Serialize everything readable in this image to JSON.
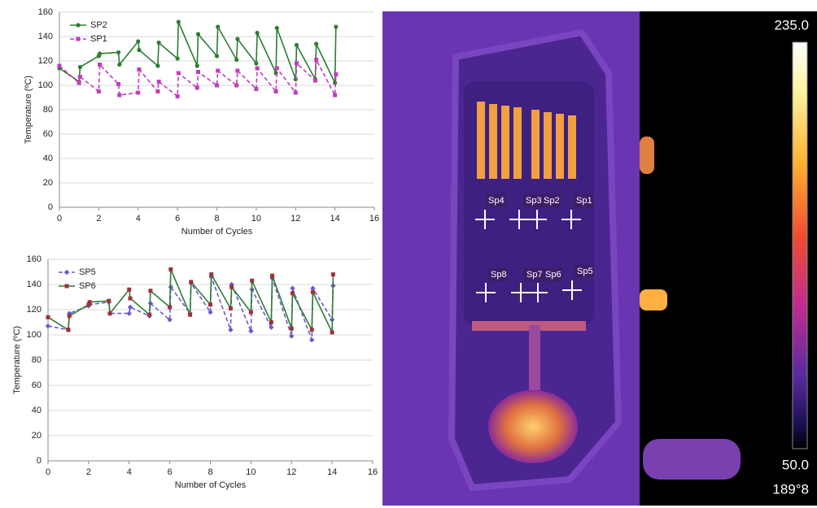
{
  "chart_data": [
    {
      "type": "line",
      "xlabel": "Number of Cycles",
      "ylabel": "Temperature (ºC)",
      "x": [
        0,
        1,
        1.05,
        2,
        2.05,
        3,
        3.05,
        4,
        4.05,
        5,
        5.05,
        6,
        6.05,
        7,
        7.05,
        8,
        8.05,
        9,
        9.05,
        10,
        10.05,
        11,
        11.05,
        12,
        12.05,
        13,
        13.05,
        14,
        14.05
      ],
      "series": [
        {
          "name": "SP2",
          "color": "#2e7d32",
          "marker_color": "#2e7d32",
          "marker": "circle",
          "dashed": false,
          "values": [
            114,
            103,
            115,
            124,
            126,
            127,
            117,
            136,
            129,
            116,
            135,
            122,
            152,
            116,
            142,
            124,
            148,
            121,
            138,
            118,
            143,
            110,
            147,
            105,
            133,
            105,
            134,
            102,
            148
          ]
        },
        {
          "name": "SP1",
          "color": "#c03cc0",
          "marker_color": "#c03cc0",
          "marker": "square",
          "dashed": true,
          "values": [
            116,
            102,
            107,
            95,
            117,
            101,
            92,
            94,
            113,
            95,
            103,
            91,
            110,
            98,
            111,
            100,
            112,
            100,
            112,
            97,
            114,
            95,
            114,
            94,
            118,
            104,
            121,
            92,
            109
          ]
        }
      ],
      "xlim": [
        0,
        16
      ],
      "xticks": [
        0,
        2,
        4,
        6,
        8,
        10,
        12,
        14,
        16
      ],
      "ylim": [
        0,
        160
      ],
      "yticks": [
        0,
        20,
        40,
        60,
        80,
        100,
        120,
        140,
        160
      ],
      "grid": true,
      "legend": "upper left"
    },
    {
      "type": "line",
      "xlabel": "Number of Cycles",
      "ylabel": "Temperature (ºC)",
      "x": [
        0,
        1,
        1.05,
        2,
        2.05,
        3,
        3.05,
        4,
        4.05,
        5,
        5.05,
        6,
        6.05,
        7,
        7.05,
        8,
        8.05,
        9,
        9.05,
        10,
        10.05,
        11,
        11.05,
        12,
        12.05,
        13,
        13.05,
        14,
        14.05
      ],
      "series": [
        {
          "name": "SP5",
          "color": "#6a5acd",
          "marker_color": "#6a5acd",
          "marker": "diamond",
          "dashed": true,
          "values": [
            107,
            104,
            117,
            123,
            124,
            126,
            117,
            117,
            122,
            115,
            125,
            112,
            138,
            117,
            141,
            118,
            146,
            104,
            140,
            103,
            136,
            106,
            145,
            99,
            137,
            96,
            137,
            112,
            139
          ]
        },
        {
          "name": "SP6",
          "color": "#2e7d32",
          "marker_color": "#a0303a",
          "marker": "square",
          "dashed": false,
          "values": [
            114,
            104,
            115,
            124,
            126,
            127,
            117,
            136,
            129,
            116,
            135,
            122,
            152,
            116,
            142,
            124,
            148,
            121,
            138,
            118,
            143,
            110,
            147,
            105,
            133,
            104,
            134,
            102,
            148
          ]
        }
      ],
      "xlim": [
        0,
        16
      ],
      "xticks": [
        0,
        2,
        4,
        6,
        8,
        10,
        12,
        14,
        16
      ],
      "ylim": [
        0,
        160
      ],
      "yticks": [
        0,
        20,
        40,
        60,
        80,
        100,
        120,
        140,
        160
      ],
      "grid": true,
      "legend": "upper left"
    }
  ],
  "thermal_image": {
    "spots": [
      "Sp4",
      "Sp3",
      "Sp2",
      "Sp1",
      "Sp8",
      "Sp7",
      "Sp6",
      "Sp5"
    ],
    "scale_max": "235.0",
    "scale_min": "50.0",
    "corner_text": "189°8"
  }
}
